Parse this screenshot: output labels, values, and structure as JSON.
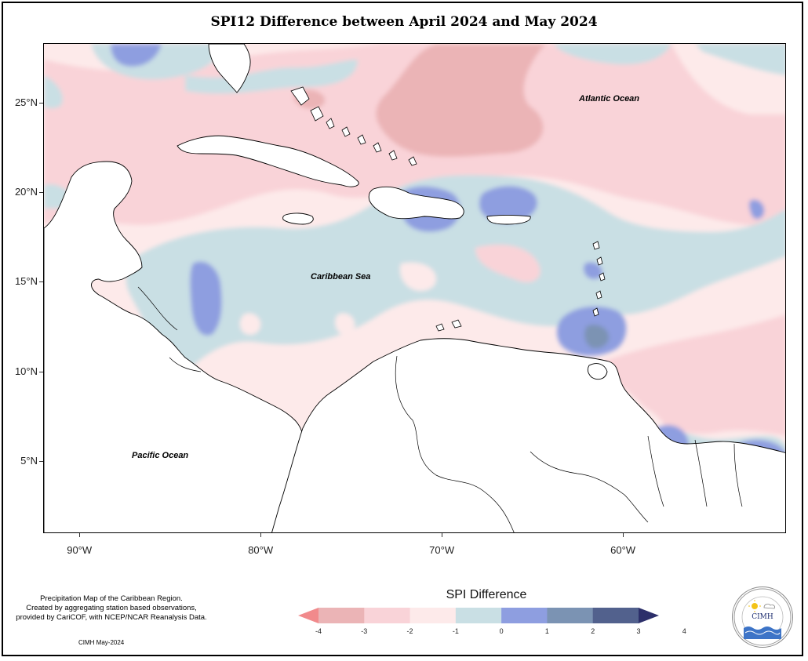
{
  "title": "SPI12 Difference between April 2024 and May 2024",
  "map": {
    "lat_range": [
      1,
      28.3
    ],
    "lon_range": [
      -92,
      -51
    ],
    "y_ticks": [
      {
        "value": 25,
        "label": "25°N"
      },
      {
        "value": 20,
        "label": "20°N"
      },
      {
        "value": 15,
        "label": "15°N"
      },
      {
        "value": 10,
        "label": "10°N"
      },
      {
        "value": 5,
        "label": "5°N"
      }
    ],
    "x_ticks": [
      {
        "value": -90,
        "label": "90°W"
      },
      {
        "value": -80,
        "label": "80°W"
      },
      {
        "value": -70,
        "label": "70°W"
      },
      {
        "value": -60,
        "label": "60°W"
      }
    ],
    "labels": {
      "atlantic": "Atlantic Ocean",
      "caribbean": "Caribbean Sea",
      "pacific": "Pacific Ocean"
    }
  },
  "legend": {
    "title": "SPI Difference",
    "ticks": [
      "-4",
      "-3",
      "-2",
      "-1",
      "0",
      "1",
      "2",
      "3",
      "4"
    ],
    "colors": [
      "#f18a8c",
      "#ebb4b6",
      "#f9d3d8",
      "#fdeaea",
      "#c9dfe4",
      "#8e9ee0",
      "#7b93b3",
      "#52618d",
      "#2c2f6a"
    ]
  },
  "note": {
    "line1": "Precipitation Map of the Caribbean Region.",
    "line2": "Created by aggregating station based observations,",
    "line3": "provided by CariCOF, with NCEP/NCAR Reanalysis Data.",
    "credit": "CIMH May-2024"
  },
  "logo": {
    "arc_text": "Caribbean Institute for Meteorology and Hydrology",
    "abbr": "CIMH"
  }
}
